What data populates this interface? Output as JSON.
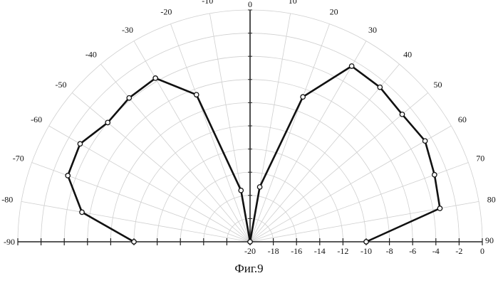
{
  "chart_data": {
    "type": "polar-line",
    "title": "",
    "angle_unit": "deg",
    "angle_range": [
      -90,
      90
    ],
    "angle_ticks": [
      -90,
      -80,
      -70,
      -60,
      -50,
      -40,
      -30,
      -20,
      -10,
      0,
      10,
      20,
      30,
      40,
      50,
      60,
      70,
      80,
      90
    ],
    "angle_tick_labels": [
      "-90",
      "-80",
      "-70",
      "-60",
      "-50",
      "-40",
      "-30",
      "-20",
      "-10",
      "0",
      "10",
      "20",
      "30",
      "40",
      "50",
      "60",
      "70",
      "80",
      "90"
    ],
    "radial_range": [
      -20,
      0
    ],
    "radial_ticks": [
      -20,
      -18,
      -16,
      -14,
      -12,
      -10,
      -8,
      -6,
      -4,
      -2,
      0
    ],
    "radial_tick_labels": [
      "-20",
      "-18",
      "-16",
      "-14",
      "-12",
      "-10",
      "-8",
      "-6",
      "-4",
      "-2",
      "0"
    ],
    "grid": true,
    "series": [
      {
        "angle": [
          -90,
          -80,
          -70,
          -60,
          -50,
          -40,
          -30,
          -20,
          -10,
          0,
          10,
          20,
          30,
          40,
          50,
          60,
          70,
          80,
          90
        ],
        "value": [
          -10,
          -5.3,
          -3.3,
          -3.1,
          -4.0,
          -3.8,
          -3.7,
          -6.5,
          -15.5,
          -20,
          -15.2,
          -6.7,
          -2.5,
          -2.6,
          -2.9,
          -2.6,
          -3.1,
          -3.4,
          -10
        ]
      }
    ]
  },
  "caption": "Фиг.9"
}
